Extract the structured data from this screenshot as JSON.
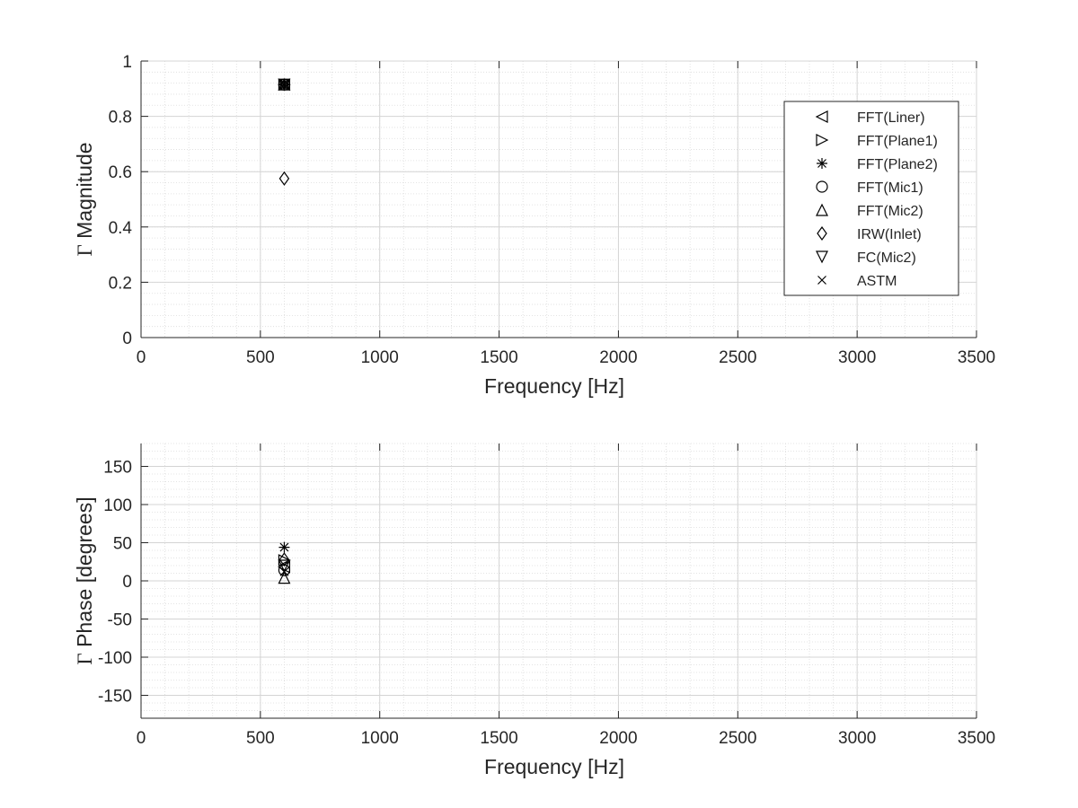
{
  "chart_data": [
    {
      "type": "scatter",
      "xlabel": "Frequency [Hz]",
      "ylabel_symbol": "Γ",
      "ylabel": "Magnitude",
      "xlim": [
        0,
        3500
      ],
      "ylim": [
        0,
        1
      ],
      "xticks": [
        0,
        500,
        1000,
        1500,
        2000,
        2500,
        3000,
        3500
      ],
      "yticks": [
        0,
        0.2,
        0.4,
        0.6,
        0.8,
        1
      ],
      "grid": true,
      "minor_grid": true,
      "legend_position": "top-right",
      "series": [
        {
          "name": "FFT(Liner)",
          "marker": "triangle-left",
          "x": [
            600
          ],
          "y": [
            0.915
          ]
        },
        {
          "name": "FFT(Plane1)",
          "marker": "triangle-right",
          "x": [
            600
          ],
          "y": [
            0.915
          ]
        },
        {
          "name": "FFT(Plane2)",
          "marker": "asterisk",
          "x": [
            600
          ],
          "y": [
            0.915
          ]
        },
        {
          "name": "FFT(Mic1)",
          "marker": "circle",
          "x": [
            600
          ],
          "y": [
            0.915
          ]
        },
        {
          "name": "FFT(Mic2)",
          "marker": "triangle-up",
          "x": [
            600
          ],
          "y": [
            0.915
          ]
        },
        {
          "name": "IRW(Inlet)",
          "marker": "diamond",
          "x": [
            600
          ],
          "y": [
            0.575
          ]
        },
        {
          "name": "FC(Mic2)",
          "marker": "triangle-down",
          "x": [
            600
          ],
          "y": [
            0.915
          ]
        },
        {
          "name": "ASTM",
          "marker": "cross",
          "x": [
            600
          ],
          "y": [
            0.915
          ]
        }
      ]
    },
    {
      "type": "scatter",
      "xlabel": "Frequency [Hz]",
      "ylabel_symbol": "Γ",
      "ylabel": "Phase [degrees]",
      "xlim": [
        0,
        3500
      ],
      "ylim": [
        -180,
        180
      ],
      "xticks": [
        0,
        500,
        1000,
        1500,
        2000,
        2500,
        3000,
        3500
      ],
      "yticks": [
        -150,
        -100,
        -50,
        0,
        50,
        100,
        150
      ],
      "grid": true,
      "minor_grid": true,
      "series": [
        {
          "marker": "triangle-left",
          "x": [
            600
          ],
          "y": [
            18
          ]
        },
        {
          "marker": "triangle-right",
          "x": [
            600
          ],
          "y": [
            27
          ]
        },
        {
          "marker": "asterisk",
          "x": [
            600
          ],
          "y": [
            44
          ]
        },
        {
          "marker": "circle",
          "x": [
            600
          ],
          "y": [
            14
          ]
        },
        {
          "marker": "triangle-up",
          "x": [
            600
          ],
          "y": [
            4
          ]
        },
        {
          "marker": "diamond",
          "x": [
            600
          ],
          "y": [
            28
          ]
        },
        {
          "marker": "triangle-down",
          "x": [
            600
          ],
          "y": [
            20
          ]
        },
        {
          "marker": "cross",
          "x": [
            600
          ],
          "y": [
            12
          ]
        }
      ]
    }
  ]
}
